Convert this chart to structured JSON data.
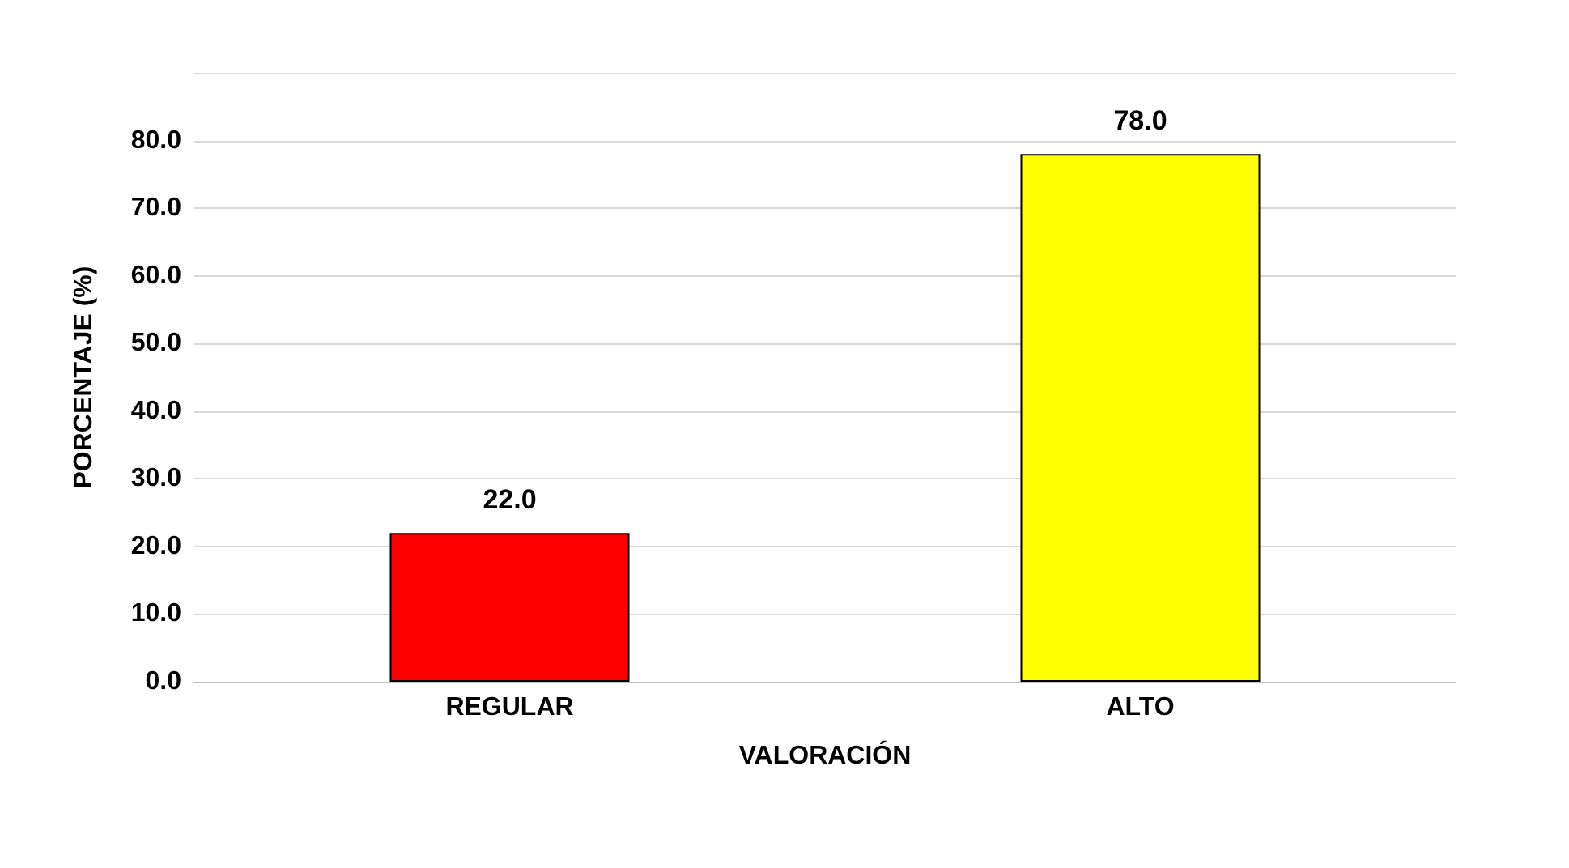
{
  "chart_data": {
    "type": "bar",
    "xlabel": "VALORACIÓN",
    "ylabel": "PORCENTAJE (%)",
    "categories": [
      "REGULAR",
      "ALTO"
    ],
    "values": [
      22.0,
      78.0
    ],
    "colors": [
      "#ff0000",
      "#ffff00"
    ],
    "value_labels": [
      "22.0",
      "78.0"
    ],
    "ylim": [
      0,
      90
    ],
    "yticks": [
      {
        "value": 0,
        "label": "0.0"
      },
      {
        "value": 10,
        "label": "10.0"
      },
      {
        "value": 20,
        "label": "20.0"
      },
      {
        "value": 30,
        "label": "30.0"
      },
      {
        "value": 40,
        "label": "40.0"
      },
      {
        "value": 50,
        "label": "50.0"
      },
      {
        "value": 60,
        "label": "60.0"
      },
      {
        "value": 70,
        "label": "70.0"
      },
      {
        "value": 80,
        "label": "80.0"
      },
      {
        "value": 90,
        "label": null
      }
    ],
    "grid": "y"
  }
}
